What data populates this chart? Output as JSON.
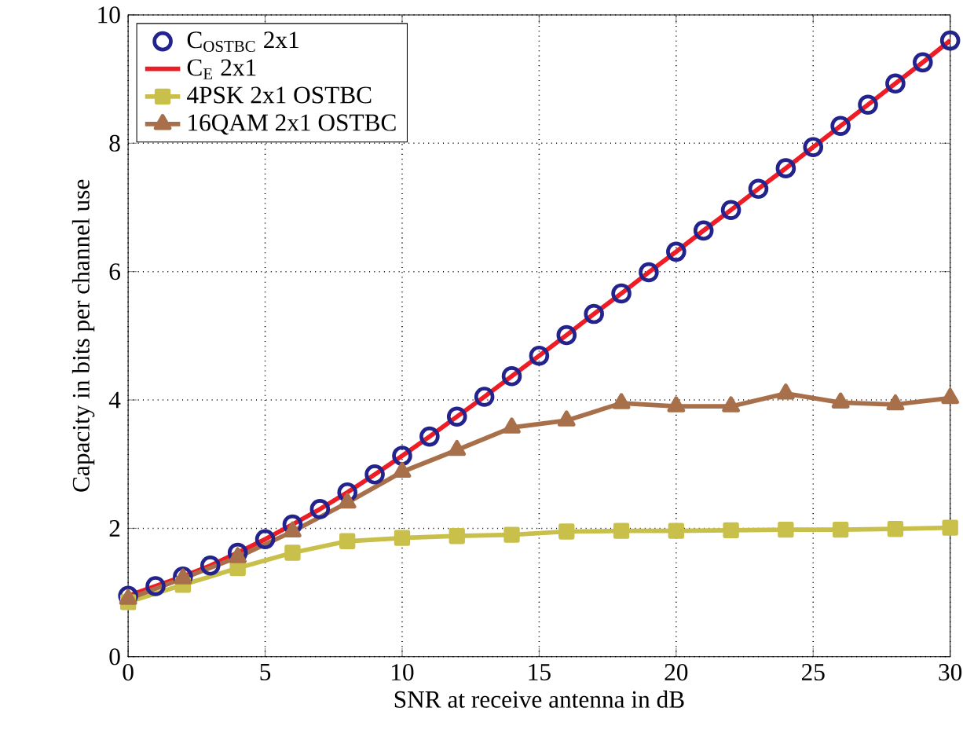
{
  "chart_data": {
    "type": "line",
    "xlabel": "SNR at receive antenna in dB",
    "ylabel": "Capacity in bits per channel use",
    "xlim": [
      0,
      30
    ],
    "ylim": [
      0,
      10
    ],
    "xticks": [
      0,
      5,
      10,
      15,
      20,
      25,
      30
    ],
    "yticks": [
      0,
      2,
      4,
      6,
      8,
      10
    ],
    "grid": true,
    "legend": "top left",
    "series": [
      {
        "name": "C$_{OSTBC}$ 2x1",
        "type": "scatter",
        "marker": "circle",
        "color": "#23238e",
        "x": [
          0,
          1,
          2,
          3,
          4,
          5,
          6,
          7,
          8,
          9,
          10,
          11,
          12,
          13,
          14,
          15,
          16,
          17,
          18,
          19,
          20,
          21,
          22,
          23,
          24,
          25,
          26,
          27,
          28,
          29,
          30
        ],
        "values": [
          0.95,
          1.1,
          1.25,
          1.42,
          1.62,
          1.83,
          2.06,
          2.3,
          2.56,
          2.84,
          3.13,
          3.43,
          3.74,
          4.05,
          4.37,
          4.69,
          5.01,
          5.34,
          5.66,
          5.99,
          6.31,
          6.64,
          6.96,
          7.29,
          7.61,
          7.94,
          8.27,
          8.6,
          8.93,
          9.26,
          9.6
        ]
      },
      {
        "name": "C$_{E}$ 2x1",
        "marker": "none",
        "color": "#ee1c25",
        "x": [
          0,
          1,
          2,
          3,
          4,
          5,
          6,
          7,
          8,
          9,
          10,
          11,
          12,
          13,
          14,
          15,
          16,
          17,
          18,
          19,
          20,
          21,
          22,
          23,
          24,
          25,
          26,
          27,
          28,
          29,
          30
        ],
        "values": [
          0.95,
          1.1,
          1.25,
          1.42,
          1.62,
          1.83,
          2.06,
          2.3,
          2.56,
          2.84,
          3.13,
          3.43,
          3.74,
          4.05,
          4.37,
          4.69,
          5.01,
          5.34,
          5.66,
          5.99,
          6.31,
          6.64,
          6.96,
          7.29,
          7.61,
          7.94,
          8.27,
          8.6,
          8.93,
          9.26,
          9.6
        ]
      },
      {
        "name": "4PSK 2x1 OSTBC",
        "marker": "square",
        "color": "#c8c04a",
        "x": [
          0,
          2,
          4,
          6,
          8,
          10,
          12,
          14,
          16,
          18,
          20,
          22,
          24,
          26,
          28,
          30
        ],
        "values": [
          0.85,
          1.12,
          1.38,
          1.62,
          1.8,
          1.85,
          1.88,
          1.9,
          1.95,
          1.96,
          1.96,
          1.97,
          1.98,
          1.98,
          1.99,
          2.01
        ]
      },
      {
        "name": "16QAM 2x1 OSTBC",
        "marker": "triangle",
        "color": "#a8704a",
        "x": [
          0,
          2,
          4,
          6,
          8,
          10,
          12,
          14,
          16,
          18,
          20,
          22,
          24,
          26,
          28,
          30
        ],
        "values": [
          0.9,
          1.22,
          1.55,
          1.95,
          2.4,
          2.88,
          3.22,
          3.57,
          3.68,
          3.95,
          3.9,
          3.9,
          4.1,
          3.96,
          3.93,
          4.03
        ]
      }
    ]
  }
}
